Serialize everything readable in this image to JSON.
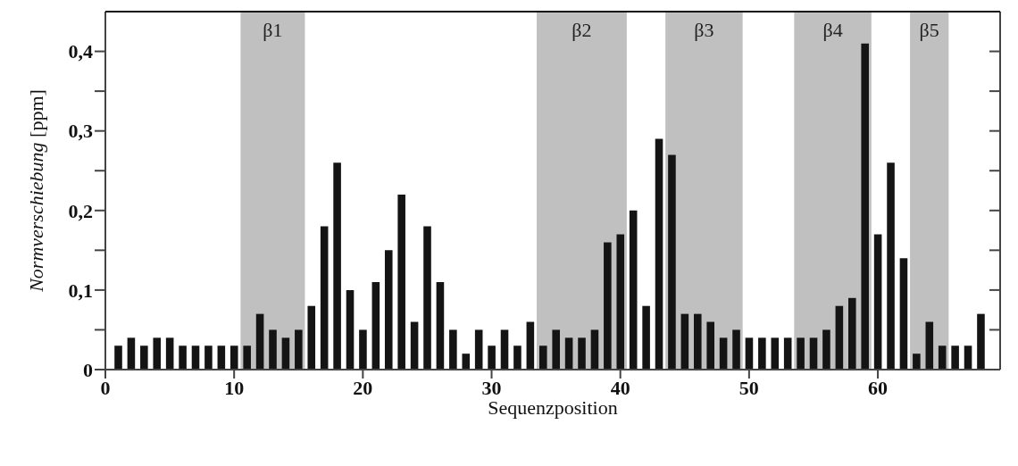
{
  "chart_data": {
    "type": "bar",
    "xlabel": "Sequenzposition",
    "ylabel": "Normverschiebung [ppm]",
    "x": [
      1,
      2,
      3,
      4,
      5,
      6,
      7,
      8,
      9,
      10,
      11,
      12,
      13,
      14,
      15,
      16,
      17,
      18,
      19,
      20,
      21,
      22,
      23,
      24,
      25,
      26,
      27,
      28,
      29,
      30,
      31,
      32,
      33,
      34,
      35,
      36,
      37,
      38,
      39,
      40,
      41,
      42,
      43,
      44,
      45,
      46,
      47,
      48,
      49,
      50,
      51,
      52,
      53,
      54,
      55,
      56,
      57,
      58,
      59,
      60,
      61,
      62,
      63,
      64,
      65,
      66,
      67,
      68
    ],
    "values": [
      0.03,
      0.04,
      0.03,
      0.04,
      0.04,
      0.03,
      0.03,
      0.03,
      0.03,
      0.03,
      0.03,
      0.07,
      0.05,
      0.04,
      0.05,
      0.08,
      0.18,
      0.26,
      0.1,
      0.05,
      0.11,
      0.15,
      0.22,
      0.06,
      0.18,
      0.11,
      0.05,
      0.02,
      0.05,
      0.03,
      0.05,
      0.03,
      0.06,
      0.03,
      0.05,
      0.04,
      0.04,
      0.05,
      0.16,
      0.17,
      0.2,
      0.08,
      0.29,
      0.27,
      0.07,
      0.07,
      0.06,
      0.04,
      0.05,
      0.04,
      0.04,
      0.04,
      0.04,
      0.04,
      0.04,
      0.05,
      0.08,
      0.09,
      0.41,
      0.17,
      0.26,
      0.14,
      0.02,
      0.06,
      0.03,
      0.03,
      0.03,
      0.07
    ],
    "color": "#141414",
    "xlim": [
      0,
      69.5
    ],
    "xticks": [
      0,
      10,
      20,
      30,
      40,
      50,
      60
    ],
    "ylim": [
      0,
      0.45
    ],
    "yticks": [
      {
        "value": 0,
        "label": "0"
      },
      {
        "value": 0.05,
        "label": null
      },
      {
        "value": 0.1,
        "label": "0,1"
      },
      {
        "value": 0.15,
        "label": null
      },
      {
        "value": 0.2,
        "label": "0,2"
      },
      {
        "value": 0.25,
        "label": null
      },
      {
        "value": 0.3,
        "label": "0,3"
      },
      {
        "value": 0.35,
        "label": null
      },
      {
        "value": 0.4,
        "label": "0,4"
      }
    ],
    "bands": [
      {
        "axis": "x",
        "from": 10.5,
        "to": 15.5,
        "label": "β1",
        "color": "#c0c0c0"
      },
      {
        "axis": "x",
        "from": 33.5,
        "to": 40.5,
        "label": "β2",
        "color": "#c0c0c0"
      },
      {
        "axis": "x",
        "from": 43.5,
        "to": 49.5,
        "label": "β3",
        "color": "#c0c0c0"
      },
      {
        "axis": "x",
        "from": 53.5,
        "to": 59.5,
        "label": "β4",
        "color": "#c0c0c0"
      },
      {
        "axis": "x",
        "from": 62.5,
        "to": 65.5,
        "label": "β5",
        "color": "#c0c0c0"
      }
    ],
    "orientation": "vertical"
  }
}
